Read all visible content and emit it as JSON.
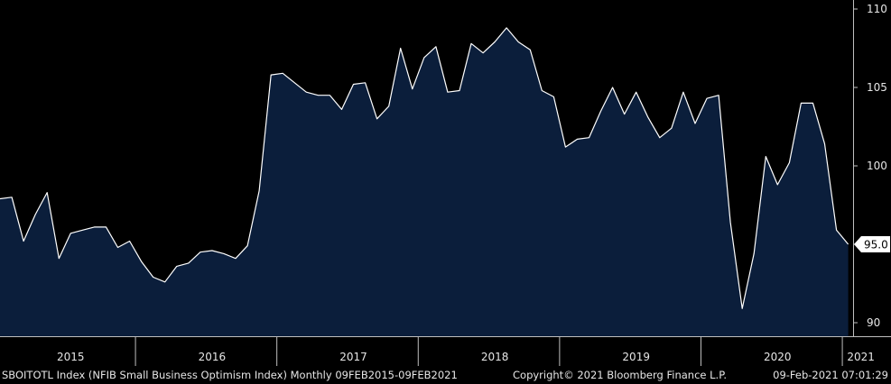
{
  "chart_data": {
    "type": "area",
    "title": "",
    "xlabel": "",
    "ylabel": "",
    "ylim": [
      89,
      111
    ],
    "y_ticks": [
      90,
      95,
      100,
      105,
      110
    ],
    "x_tick_labels": [
      "2015",
      "2016",
      "2017",
      "2018",
      "2019",
      "2020",
      "2021"
    ],
    "last_value_label": "95.0",
    "y_axis_position": "right",
    "grid": false,
    "colors": {
      "background": "#000000",
      "fill": "#0b1e3b",
      "line": "#ffffff",
      "axis": "#bfbfbf",
      "value_box": "#ffffff"
    },
    "series": [
      {
        "x": [
          "2015-01",
          "2015-02",
          "2015-03",
          "2015-04",
          "2015-05",
          "2015-06",
          "2015-07",
          "2015-08",
          "2015-09",
          "2015-10",
          "2015-11",
          "2015-12",
          "2016-01",
          "2016-02",
          "2016-03",
          "2016-04",
          "2016-05",
          "2016-06",
          "2016-07",
          "2016-08",
          "2016-09",
          "2016-10",
          "2016-11",
          "2016-12",
          "2017-01",
          "2017-02",
          "2017-03",
          "2017-04",
          "2017-05",
          "2017-06",
          "2017-07",
          "2017-08",
          "2017-09",
          "2017-10",
          "2017-11",
          "2017-12",
          "2018-01",
          "2018-02",
          "2018-03",
          "2018-04",
          "2018-05",
          "2018-06",
          "2018-07",
          "2018-08",
          "2018-09",
          "2018-10",
          "2018-11",
          "2018-12",
          "2019-01",
          "2019-02",
          "2019-03",
          "2019-04",
          "2019-05",
          "2019-06",
          "2019-07",
          "2019-08",
          "2019-09",
          "2019-10",
          "2019-11",
          "2019-12",
          "2020-01",
          "2020-02",
          "2020-03",
          "2020-04",
          "2020-05",
          "2020-06",
          "2020-07",
          "2020-08",
          "2020-09",
          "2020-10",
          "2020-11",
          "2020-12",
          "2021-01"
        ],
        "values": [
          97.9,
          98.0,
          95.2,
          96.9,
          98.3,
          94.1,
          95.7,
          95.9,
          96.1,
          96.1,
          94.8,
          95.2,
          93.9,
          92.9,
          92.6,
          93.6,
          93.8,
          94.5,
          94.6,
          94.4,
          94.1,
          94.9,
          98.4,
          105.8,
          105.9,
          105.3,
          104.7,
          104.5,
          104.5,
          103.6,
          105.2,
          105.3,
          103.0,
          103.8,
          107.5,
          104.9,
          106.9,
          107.6,
          104.7,
          104.8,
          107.8,
          107.2,
          107.9,
          108.8,
          107.9,
          107.4,
          104.8,
          104.4,
          101.2,
          101.7,
          101.8,
          103.5,
          105.0,
          103.3,
          104.7,
          103.1,
          101.8,
          102.4,
          104.7,
          102.7,
          104.3,
          104.5,
          96.4,
          90.9,
          94.4,
          100.6,
          98.8,
          100.2,
          104.0,
          104.0,
          101.4,
          95.9,
          95.0
        ]
      }
    ]
  },
  "footer": {
    "left": "SBOITOTL Index (NFIB Small Business Optimism Index)  Monthly 09FEB2015-09FEB2021",
    "middle": "Copyright© 2021 Bloomberg Finance L.P.",
    "right": "09-Feb-2021 07:01:29"
  }
}
